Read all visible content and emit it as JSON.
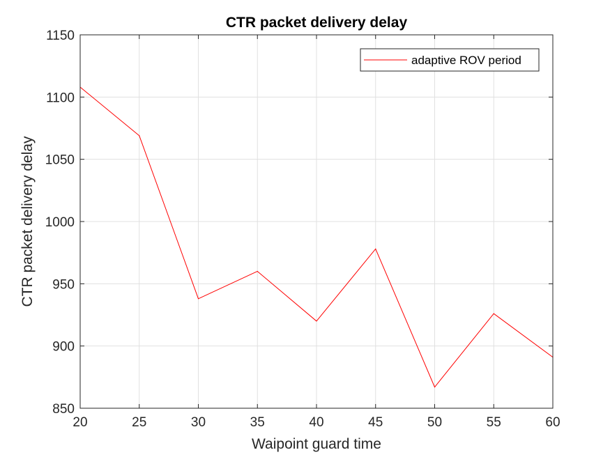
{
  "chart_data": {
    "type": "line",
    "title": "CTR packet delivery delay",
    "xlabel": "Waipoint guard time",
    "ylabel": "CTR packet delivery delay",
    "x": [
      20,
      25,
      30,
      35,
      40,
      45,
      50,
      55,
      60
    ],
    "xlim": [
      20,
      60
    ],
    "ylim": [
      850,
      1150
    ],
    "xticks": [
      "20",
      "25",
      "30",
      "35",
      "40",
      "45",
      "50",
      "55",
      "60"
    ],
    "yticks": [
      "850",
      "900",
      "950",
      "1000",
      "1050",
      "1100",
      "1150"
    ],
    "grid": true,
    "legend_position": "top-right",
    "series": [
      {
        "name": "adaptive ROV period",
        "color": "#ff0000",
        "values": [
          1108,
          1069,
          938,
          960,
          920,
          978,
          867,
          926,
          891
        ]
      }
    ]
  }
}
